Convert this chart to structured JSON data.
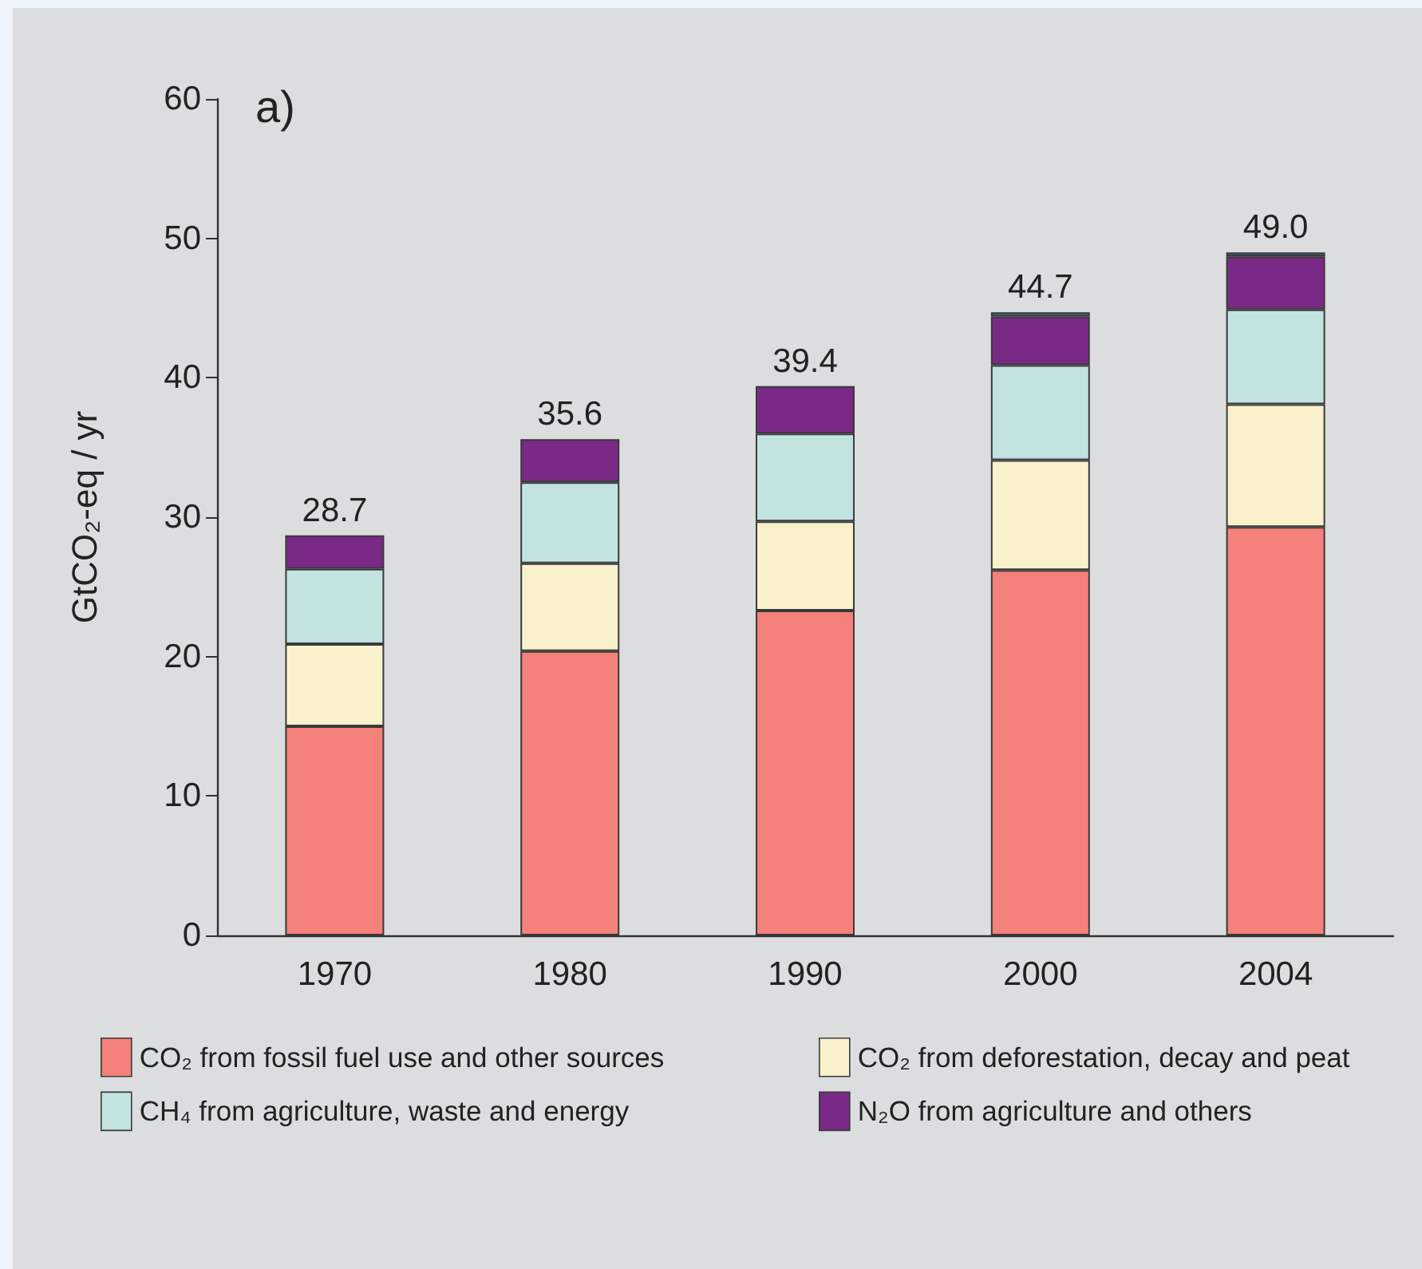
{
  "chart_data": {
    "type": "bar",
    "stacked": true,
    "annotations": [
      "a)"
    ],
    "ylabel": "GtCO₂-eq / yr",
    "categories": [
      "1970",
      "1980",
      "1990",
      "2000",
      "2004"
    ],
    "series": [
      {
        "name": "CO₂ from fossil fuel use and other sources",
        "color": "#f4817a",
        "values": [
          15.0,
          20.4,
          23.3,
          26.2,
          29.3
        ]
      },
      {
        "name": "CO₂ from deforestation, decay and peat",
        "color": "#f8f1cc",
        "values": [
          5.9,
          6.3,
          6.4,
          7.9,
          8.8
        ]
      },
      {
        "name": "CH₄ from agriculture, waste and energy",
        "color": "#c3e3e0",
        "values": [
          5.4,
          5.8,
          6.3,
          6.8,
          6.8
        ]
      },
      {
        "name": "N₂O from agriculture and others",
        "color": "#7a2a86",
        "values": [
          2.4,
          3.1,
          3.4,
          3.5,
          3.8
        ]
      },
      {
        "color": "#3d6d8c",
        "values": [
          null,
          null,
          null,
          0.3,
          0.3
        ]
      }
    ],
    "ylim": [
      0,
      60
    ],
    "yticks": [
      0,
      10,
      20,
      30,
      40,
      50,
      60
    ],
    "totals": [
      "28.7",
      "35.6",
      "39.4",
      "44.7",
      "49.0"
    ],
    "legend": "bottom"
  }
}
